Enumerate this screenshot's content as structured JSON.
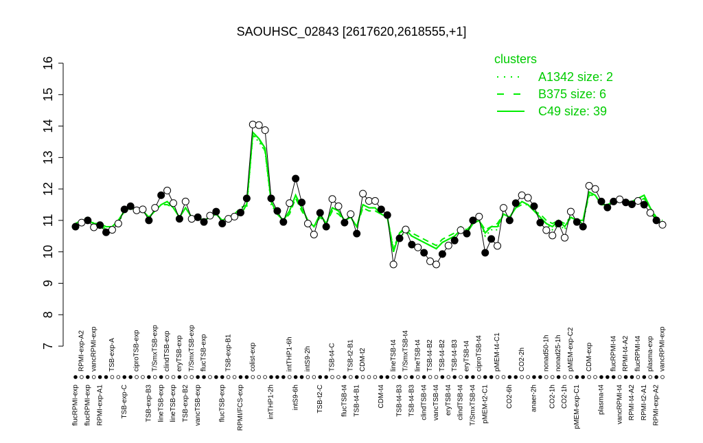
{
  "chart_data": {
    "type": "line",
    "title": "SAOUHSC_02843 [2617620,2618555,+1]",
    "ylim": [
      7,
      16
    ],
    "yticks": [
      7,
      8,
      9,
      10,
      11,
      12,
      13,
      14,
      15,
      16
    ],
    "categories": [
      "flucRPMI-exp",
      "RPMI-exp-A2",
      "flucRPMI-exp",
      "vancRPMI-exp",
      "RPMI-exp-A1",
      null,
      "TSB-exp-A",
      null,
      "TSB-exp-C",
      null,
      "ciproTSB-exp",
      null,
      "TSB-exp-B3",
      "T/SmxTSB-exp",
      "lineTSB-exp",
      "clindTSB-exp",
      "lineTSB-exp",
      "eryTSB-exp",
      "TSB-exp-B2",
      "T/SmxTSB-exp",
      "vancTSB-exp",
      "flucTSB-exp",
      null,
      null,
      "flucTSB-exp",
      "TSB-exp-B1",
      null,
      "RPMI/FCS-exp",
      null,
      "colist-exp",
      null,
      null,
      "intTHP1-2h",
      null,
      null,
      "intTHP1-6h",
      "intS9-6h",
      null,
      "intS9-2h",
      null,
      "TSB-t2-C",
      null,
      "TSB-t4-C",
      null,
      "flucTSB-t4",
      "TSB-t2-B1",
      "TSB-t4-B1",
      "CDM-t2",
      null,
      null,
      "CDM-t4",
      null,
      "lineTSB-t4",
      "TSB-t4-B3",
      "T/SmxTSB-t4",
      "TSB-t4-B3",
      "lineTSB-t4",
      "clindTSB-t4",
      "TSB-t4-B2",
      "vancTSB-t4",
      "TSB-t4-B2",
      "eryTSB-t4",
      "TSB-t4-B3",
      "clindTSB-t4",
      "eryTSB-t4",
      "T/SmxTSB-t4",
      "ciproTSB-t4",
      "pMEM-t2-C1",
      null,
      "pMEM-t4-C1",
      null,
      "CO2-6h",
      null,
      "CO2-2h",
      null,
      "anaer-2h",
      null,
      "nonad50-1h",
      "CO2-1h",
      "nonad25-1h",
      "CO2-1h",
      "pMEM-exp-C2",
      "pMEM-exp-C1",
      null,
      "CDM-exp",
      null,
      "plasma-t4",
      null,
      "flucRPMI-t4",
      "vancRPMI-t4",
      "RPMI-t4-A2",
      "RPMI-t4-A2",
      "flucRPMI-t4",
      "RPMI-t2-A1",
      "plasma-exp",
      "RPMI-exp-A2",
      "vancRPMI-exp"
    ],
    "values": [
      10.8,
      10.93,
      11.0,
      10.78,
      10.85,
      10.62,
      10.7,
      10.9,
      11.35,
      11.45,
      11.32,
      11.35,
      11.0,
      11.4,
      11.8,
      11.95,
      11.55,
      11.05,
      11.6,
      11.05,
      11.1,
      10.95,
      11.15,
      11.28,
      10.9,
      11.05,
      11.12,
      11.25,
      11.7,
      14.05,
      14.03,
      13.87,
      11.7,
      11.3,
      10.95,
      11.55,
      12.33,
      11.57,
      10.9,
      10.55,
      11.24,
      10.8,
      11.68,
      11.45,
      10.93,
      11.2,
      10.58,
      11.85,
      11.62,
      11.62,
      11.35,
      11.17,
      9.6,
      10.43,
      10.71,
      10.23,
      10.14,
      9.97,
      9.7,
      9.6,
      9.93,
      10.2,
      10.36,
      10.69,
      10.58,
      11.0,
      11.12,
      9.97,
      10.41,
      10.19,
      11.4,
      11.0,
      11.55,
      11.8,
      11.72,
      11.45,
      10.93,
      10.69,
      10.52,
      10.9,
      10.45,
      11.28,
      10.95,
      10.8,
      12.1,
      12.0,
      11.6,
      11.41,
      11.6,
      11.67,
      11.57,
      11.51,
      11.62,
      11.5,
      11.24,
      11.0,
      10.86
    ],
    "filled": [
      true,
      false,
      true,
      false,
      true,
      true,
      false,
      false,
      true,
      true,
      false,
      false,
      true,
      false,
      true,
      false,
      false,
      true,
      false,
      false,
      true,
      true,
      false,
      true,
      true,
      false,
      false,
      true,
      true,
      false,
      false,
      false,
      true,
      true,
      true,
      false,
      true,
      true,
      false,
      false,
      true,
      true,
      false,
      false,
      true,
      false,
      true,
      false,
      false,
      false,
      true,
      true,
      false,
      true,
      false,
      true,
      false,
      true,
      false,
      false,
      true,
      false,
      true,
      false,
      true,
      true,
      false,
      true,
      true,
      false,
      false,
      true,
      true,
      false,
      false,
      true,
      true,
      false,
      false,
      true,
      false,
      false,
      true,
      true,
      false,
      false,
      true,
      true,
      true,
      false,
      true,
      true,
      false,
      true,
      false,
      true,
      false
    ],
    "point_color": "#000000",
    "legend_title": "clusters",
    "legend_color": "#00cc00",
    "legend_position": "top-right",
    "series": [
      {
        "name": "A1342 size: 2",
        "color": "#00ee00",
        "style": "dotted",
        "values": [
          10.9,
          10.9,
          11.0,
          10.9,
          10.8,
          10.7,
          10.8,
          10.9,
          11.3,
          11.4,
          11.3,
          11.3,
          11.1,
          11.3,
          11.5,
          11.6,
          11.4,
          11.1,
          11.4,
          11.1,
          11.1,
          11.0,
          11.1,
          11.2,
          11.0,
          11.1,
          11.2,
          11.3,
          11.4,
          13.7,
          13.5,
          13.2,
          11.5,
          11.2,
          11.0,
          11.3,
          11.8,
          11.4,
          11.0,
          10.8,
          11.2,
          10.9,
          11.4,
          11.3,
          11.0,
          11.1,
          10.8,
          11.5,
          11.4,
          11.4,
          11.2,
          11.1,
          10.1,
          10.5,
          10.6,
          10.5,
          10.4,
          10.3,
          10.2,
          10.1,
          10.3,
          10.4,
          10.5,
          10.7,
          10.6,
          10.9,
          11.0,
          10.5,
          10.7,
          10.7,
          11.2,
          11.1,
          11.4,
          11.6,
          11.5,
          11.3,
          11.1,
          10.9,
          10.7,
          10.9,
          10.7,
          11.1,
          11.0,
          10.9,
          11.9,
          11.8,
          11.5,
          11.5,
          11.6,
          11.6,
          11.6,
          11.6,
          11.7,
          11.8,
          11.4,
          11.0,
          10.9
        ]
      },
      {
        "name": "B375 size: 6",
        "color": "#00ee00",
        "style": "dashed",
        "values": [
          10.9,
          11.0,
          11.1,
          10.9,
          10.9,
          10.7,
          10.8,
          11.0,
          11.3,
          11.4,
          11.3,
          11.3,
          11.1,
          11.3,
          11.5,
          11.5,
          11.4,
          11.1,
          11.4,
          11.1,
          11.1,
          11.0,
          11.1,
          11.2,
          11.0,
          11.1,
          11.2,
          11.4,
          11.5,
          13.7,
          13.6,
          13.2,
          11.6,
          11.2,
          11.0,
          11.2,
          11.7,
          11.3,
          11.0,
          10.8,
          11.1,
          10.9,
          11.3,
          11.2,
          11.0,
          11.1,
          10.8,
          11.4,
          11.3,
          11.3,
          11.2,
          11.1,
          10.1,
          10.6,
          10.8,
          10.6,
          10.5,
          10.4,
          10.3,
          10.2,
          10.4,
          10.5,
          10.6,
          10.8,
          10.7,
          10.9,
          11.0,
          10.7,
          10.8,
          10.9,
          11.2,
          11.1,
          11.4,
          11.5,
          11.5,
          11.3,
          11.2,
          11.0,
          10.9,
          11.0,
          10.9,
          11.1,
          11.0,
          11.0,
          11.8,
          11.8,
          11.5,
          11.5,
          11.6,
          11.6,
          11.6,
          11.6,
          11.6,
          11.7,
          11.4,
          11.1,
          11.0
        ]
      },
      {
        "name": "C49 size: 39",
        "color": "#00ee00",
        "style": "solid",
        "values": [
          10.9,
          11.0,
          11.0,
          10.9,
          10.9,
          10.8,
          10.8,
          11.0,
          11.3,
          11.4,
          11.3,
          11.3,
          11.1,
          11.3,
          11.5,
          11.6,
          11.4,
          11.1,
          11.4,
          11.1,
          11.1,
          11.0,
          11.1,
          11.2,
          11.0,
          11.1,
          11.1,
          11.2,
          11.5,
          13.8,
          13.6,
          13.3,
          11.6,
          11.2,
          11.0,
          11.3,
          11.8,
          11.4,
          11.0,
          10.8,
          11.2,
          10.9,
          11.4,
          11.3,
          11.0,
          11.1,
          10.8,
          11.5,
          11.4,
          11.4,
          11.2,
          11.1,
          10.0,
          10.6,
          10.7,
          10.5,
          10.4,
          10.3,
          10.2,
          10.1,
          10.3,
          10.4,
          10.5,
          10.7,
          10.6,
          10.9,
          11.0,
          10.6,
          10.8,
          10.8,
          11.2,
          11.1,
          11.4,
          11.6,
          11.5,
          11.3,
          11.1,
          10.9,
          10.8,
          11.0,
          10.8,
          11.1,
          11.0,
          11.0,
          11.9,
          11.8,
          11.5,
          11.5,
          11.6,
          11.6,
          11.6,
          11.6,
          11.7,
          11.8,
          11.4,
          11.0,
          10.9
        ]
      }
    ]
  }
}
